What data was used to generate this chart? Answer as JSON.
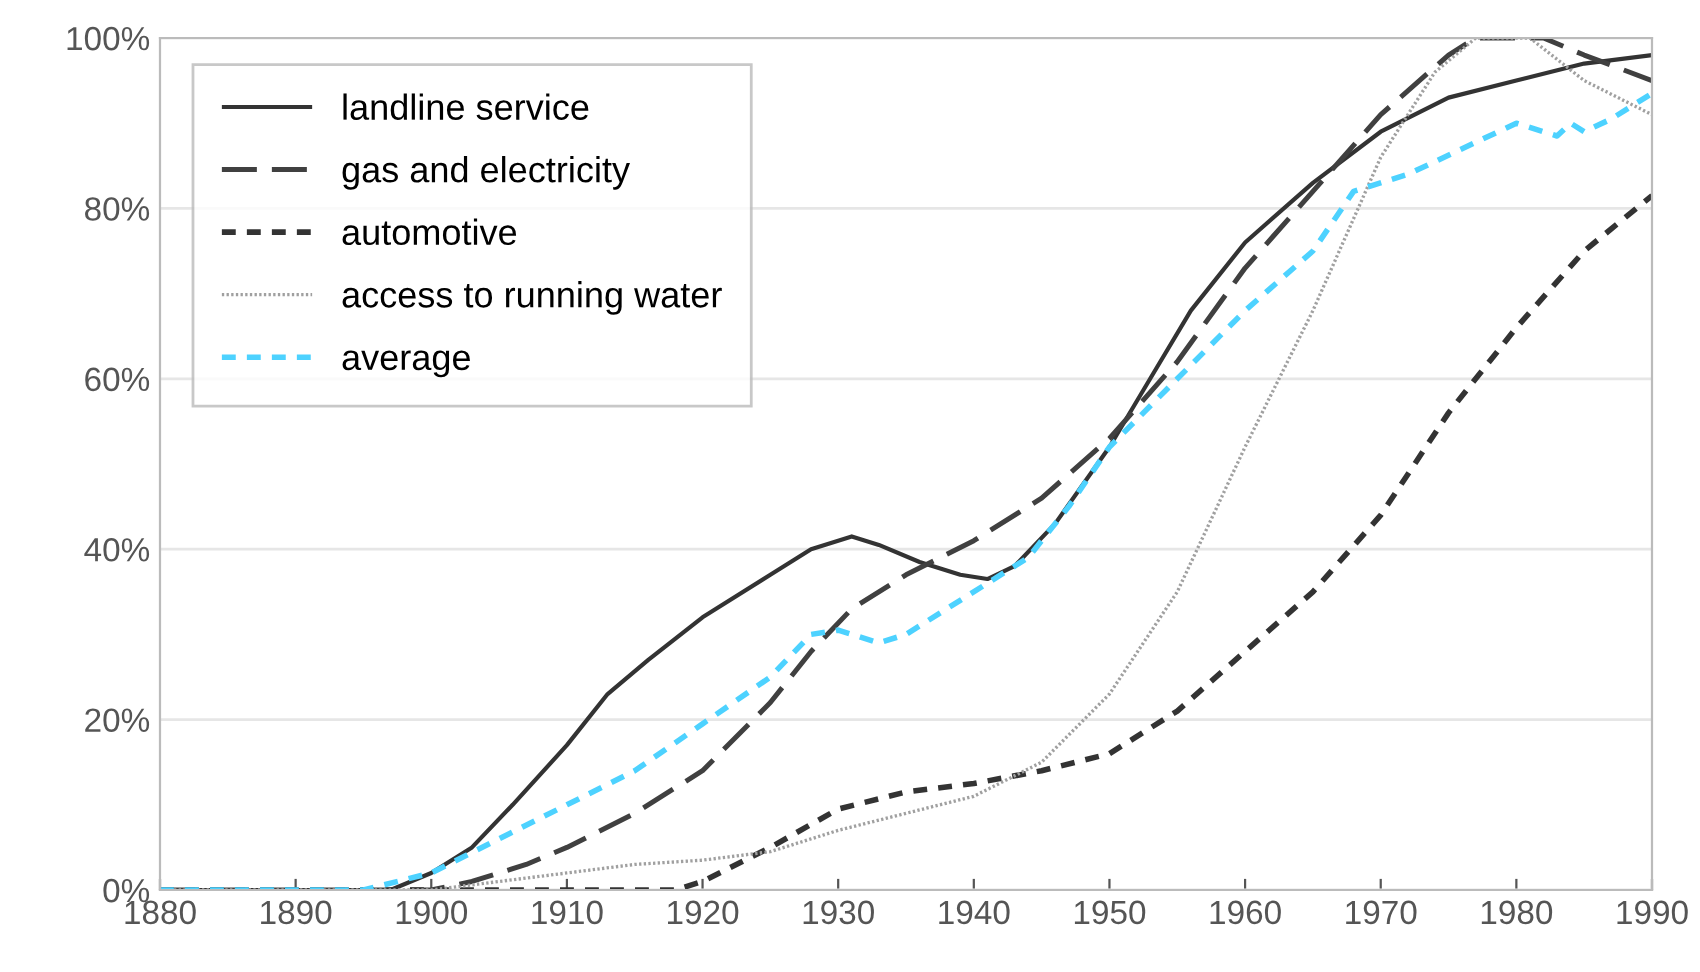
{
  "chart_data": {
    "type": "line",
    "xlim": [
      1880,
      1990
    ],
    "xticks": [
      1880,
      1890,
      1900,
      1910,
      1920,
      1930,
      1940,
      1950,
      1960,
      1970,
      1980,
      1990
    ],
    "ylim": [
      0,
      100
    ],
    "yticks": [
      {
        "value": 0,
        "label": "0%"
      },
      {
        "value": 20,
        "label": "20%"
      },
      {
        "value": 40,
        "label": "40%"
      },
      {
        "value": 60,
        "label": "60%"
      },
      {
        "value": 80,
        "label": "80%"
      },
      {
        "value": 100,
        "label": "100%"
      }
    ],
    "grid": "y",
    "legend": "top left",
    "series": [
      {
        "name": "landline service",
        "color": "#333333",
        "line_style": "solid",
        "x": [
          1880,
          1897,
          1900,
          1903,
          1906,
          1910,
          1913,
          1916,
          1920,
          1925,
          1928,
          1931,
          1933,
          1936,
          1939,
          1941,
          1943,
          1946,
          1950,
          1953,
          1956,
          1960,
          1965,
          1970,
          1975,
          1980,
          1985,
          1990
        ],
        "values": [
          0,
          0,
          2,
          5,
          10,
          17,
          23,
          27,
          32,
          37,
          40,
          41.5,
          40.5,
          38.5,
          37,
          36.5,
          38,
          43,
          52,
          60,
          68,
          76,
          83,
          89,
          93,
          95,
          97,
          98
        ]
      },
      {
        "name": "gas and electricity",
        "color": "#404040",
        "line_style": "dashed",
        "x": [
          1880,
          1900,
          1903,
          1907,
          1910,
          1915,
          1920,
          1925,
          1928,
          1931,
          1935,
          1940,
          1945,
          1950,
          1955,
          1960,
          1965,
          1970,
          1975,
          1977,
          1982,
          1985,
          1990
        ],
        "values": [
          0,
          0,
          1,
          3,
          5,
          9,
          14,
          22,
          28,
          33,
          37,
          41,
          46,
          53,
          62,
          73,
          82,
          91,
          98,
          100,
          100,
          98,
          95
        ]
      },
      {
        "name": "automotive",
        "color": "#333333",
        "line_style": "dotted",
        "x": [
          1880,
          1918,
          1920,
          1925,
          1930,
          1935,
          1940,
          1945,
          1950,
          1955,
          1960,
          1965,
          1970,
          1975,
          1980,
          1985,
          1990
        ],
        "values": [
          0,
          0,
          1,
          5,
          9.5,
          11.5,
          12.5,
          14,
          16,
          21,
          28,
          35,
          44,
          56,
          66,
          75,
          81.5
        ]
      },
      {
        "name": "access to running water",
        "color": "#a0a0a0",
        "line_style": "densely dotted",
        "x": [
          1880,
          1900,
          1905,
          1910,
          1915,
          1920,
          1925,
          1930,
          1935,
          1940,
          1945,
          1950,
          1955,
          1960,
          1965,
          1970,
          1974,
          1977,
          1981,
          1985,
          1990
        ],
        "values": [
          0,
          0,
          1,
          2,
          3,
          3.5,
          4.5,
          7,
          9,
          11,
          15,
          23,
          35,
          52,
          68,
          86,
          96,
          100,
          100,
          95,
          91
        ]
      },
      {
        "name": "average",
        "color": "#4dd2ff",
        "line_style": "dotted",
        "x": [
          1880,
          1895,
          1900,
          1905,
          1910,
          1915,
          1920,
          1925,
          1928,
          1930,
          1933,
          1935,
          1938,
          1941,
          1944,
          1947,
          1950,
          1955,
          1960,
          1965,
          1968,
          1972,
          1976,
          1980,
          1982,
          1983,
          1984,
          1985,
          1987,
          1990
        ],
        "values": [
          0,
          0,
          2,
          6,
          10,
          14,
          19.5,
          25,
          30,
          30.5,
          29,
          30,
          33,
          36,
          39,
          45,
          52,
          60,
          68,
          75,
          82,
          84,
          87,
          90,
          89,
          88.5,
          90,
          89,
          90.5,
          93.5
        ]
      }
    ]
  }
}
